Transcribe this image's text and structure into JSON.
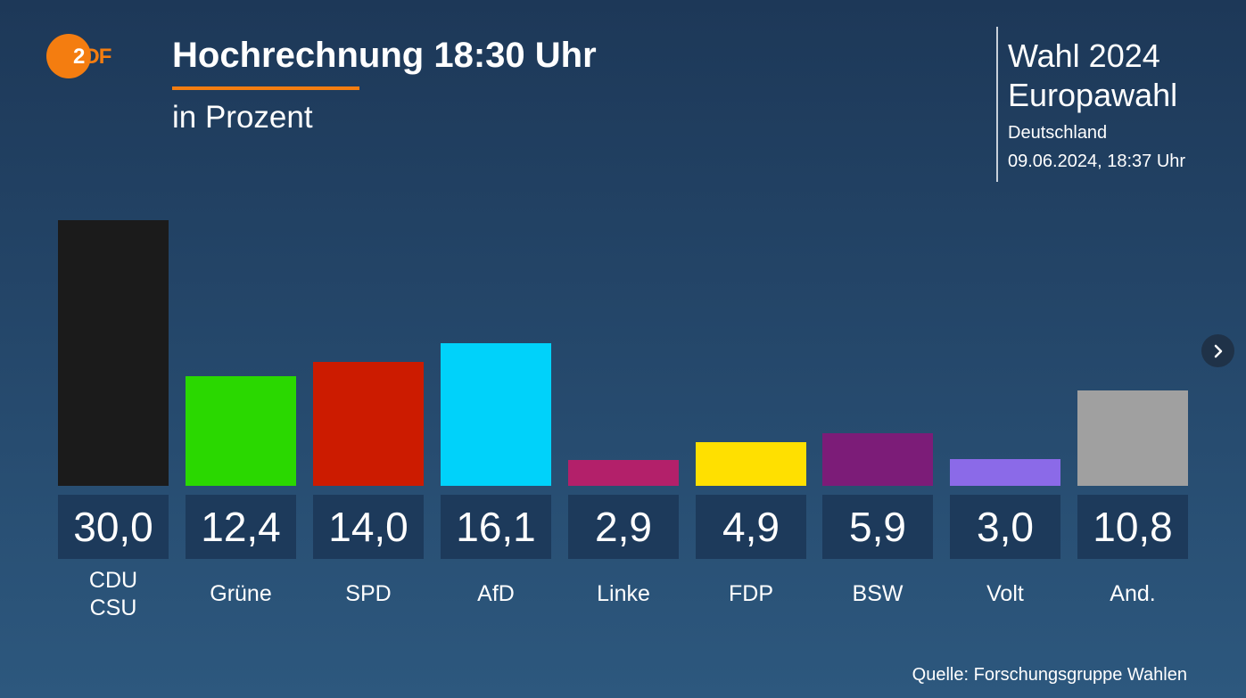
{
  "header": {
    "logo_text": "ZDF",
    "title": "Hochrechnung 18:30 Uhr",
    "subtitle": "in Prozent"
  },
  "info": {
    "line1": "Wahl 2024",
    "line2": "Europawahl",
    "region": "Deutschland",
    "timestamp": "09.06.2024, 18:37 Uhr"
  },
  "navigation": {
    "next_icon": "chevron-right-icon"
  },
  "source": "Quelle: Forschungsgruppe Wahlen",
  "chart_data": {
    "type": "bar",
    "title": "Hochrechnung 18:30 Uhr",
    "subtitle": "in Prozent",
    "categories": [
      "CDU\nCSU",
      "Grüne",
      "SPD",
      "AfD",
      "Linke",
      "FDP",
      "BSW",
      "Volt",
      "And."
    ],
    "values": [
      30.0,
      12.4,
      14.0,
      16.1,
      2.9,
      4.9,
      5.9,
      3.0,
      10.8
    ],
    "value_labels": [
      "30,0",
      "12,4",
      "14,0",
      "16,1",
      "2,9",
      "4,9",
      "5,9",
      "3,0",
      "10,8"
    ],
    "colors": [
      "#1b1b1b",
      "#2ad800",
      "#cc1b00",
      "#00d2fa",
      "#b3206a",
      "#ffe000",
      "#7c1c78",
      "#8b6ae8",
      "#a0a0a0"
    ],
    "ylabel": "Prozent",
    "xlabel": "",
    "ylim": [
      0,
      30
    ],
    "grid": false
  }
}
